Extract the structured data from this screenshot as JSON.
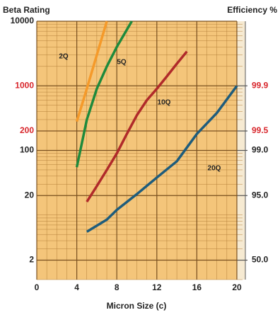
{
  "chart_data": {
    "type": "line",
    "y_label": "Beta Rating",
    "y2_label": "Efficiency %",
    "x_label": "Micron Size (c)",
    "ylog": true,
    "ylim": [
      1,
      10000
    ],
    "yticks": [
      2,
      20,
      100,
      {
        "value": 200,
        "color": "#d8262c"
      },
      {
        "value": 1000,
        "color": "#d8262c"
      },
      10000
    ],
    "y2ticks": [
      {
        "value": 50,
        "label": "50.0"
      },
      {
        "value": 95,
        "label": "95.0"
      },
      {
        "value": 99,
        "label": "99.0"
      },
      {
        "value": 99.5,
        "color": "#d8262c"
      },
      {
        "value": 99.9,
        "color": "#d8262c"
      }
    ],
    "xlim": [
      0,
      20
    ],
    "xticks": [
      0,
      4,
      8,
      12,
      16,
      20
    ],
    "grid": true,
    "series": [
      {
        "name": "2Q",
        "color": "#f59a2a",
        "x": [
          4,
          5,
          6,
          7
        ],
        "values": [
          280,
          900,
          3000,
          10000
        ]
      },
      {
        "name": "5Q",
        "color": "#1e8a3c",
        "x": [
          4,
          5,
          6,
          7,
          8,
          9.5
        ],
        "values": [
          55,
          300,
          900,
          2000,
          4000,
          10000
        ]
      },
      {
        "name": "10Q",
        "color": "#b02a2a",
        "x": [
          5,
          6,
          7,
          8,
          9,
          10,
          11,
          12,
          13,
          14,
          15
        ],
        "values": [
          16,
          28,
          50,
          90,
          180,
          350,
          600,
          900,
          1400,
          2200,
          3400
        ]
      },
      {
        "name": "20Q",
        "color": "#1e5c7c",
        "x": [
          5,
          7,
          8,
          10,
          12,
          14,
          16,
          18,
          20
        ],
        "values": [
          5.5,
          8.5,
          12,
          21,
          38,
          68,
          180,
          380,
          1000
        ]
      }
    ]
  }
}
